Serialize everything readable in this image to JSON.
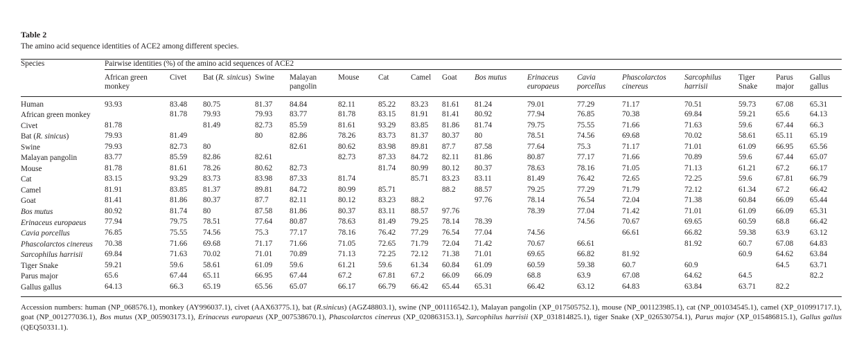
{
  "title": "Table 2",
  "caption": "The amino acid sequence identities of ACE2 among different species.",
  "chart_data": {
    "type": "table",
    "species_column_header": "Species",
    "group_header": "Pairwise identities (%) of the amino acid sequences of ACE2",
    "columns": [
      {
        "label": "African green monkey",
        "italic": false
      },
      {
        "label": "Civet",
        "italic": false
      },
      {
        "label": "Bat (R. sinicus)",
        "italic": false,
        "italic_part": "R. sinicus"
      },
      {
        "label": "Swine",
        "italic": false
      },
      {
        "label": "Malayan pangolin",
        "italic": false
      },
      {
        "label": "Mouse",
        "italic": false
      },
      {
        "label": "Cat",
        "italic": false
      },
      {
        "label": "Camel",
        "italic": false
      },
      {
        "label": "Goat",
        "italic": false
      },
      {
        "label": "Bos mutus",
        "italic": true
      },
      {
        "label": "Erinaceus europaeus",
        "italic": true
      },
      {
        "label": "Cavia porcellus",
        "italic": true
      },
      {
        "label": "Phascolarctos cinereus",
        "italic": true
      },
      {
        "label": "Sarcophilus harrisii",
        "italic": true
      },
      {
        "label": "Tiger Snake",
        "italic": false
      },
      {
        "label": "Parus major",
        "italic": false
      },
      {
        "label": "Gallus gallus",
        "italic": false
      }
    ],
    "rows": [
      {
        "label": "Human",
        "italic": false,
        "values": [
          "93.93",
          "83.48",
          "80.75",
          "81.37",
          "84.84",
          "82.11",
          "85.22",
          "83.23",
          "81.61",
          "81.24",
          "79.01",
          "77.29",
          "71.17",
          "70.51",
          "59.73",
          "67.08",
          "65.31"
        ]
      },
      {
        "label": "African green monkey",
        "italic": false,
        "values": [
          "",
          "81.78",
          "79.93",
          "79.93",
          "83.77",
          "81.78",
          "83.15",
          "81.91",
          "81.41",
          "80.92",
          "77.94",
          "76.85",
          "70.38",
          "69.84",
          "59.21",
          "65.6",
          "64.13"
        ]
      },
      {
        "label": "Civet",
        "italic": false,
        "values": [
          "81.78",
          "",
          "81.49",
          "82.73",
          "85.59",
          "81.61",
          "93.29",
          "83.85",
          "81.86",
          "81.74",
          "79.75",
          "75.55",
          "71.66",
          "71.63",
          "59.6",
          "67.44",
          "66.3"
        ]
      },
      {
        "label": "Bat (R. sinicus)",
        "italic": false,
        "italic_part": "R. sinicus",
        "values": [
          "79.93",
          "81.49",
          "",
          "80",
          "82.86",
          "78.26",
          "83.73",
          "81.37",
          "80.37",
          "80",
          "78.51",
          "74.56",
          "69.68",
          "70.02",
          "58.61",
          "65.11",
          "65.19"
        ]
      },
      {
        "label": "Swine",
        "italic": false,
        "values": [
          "79.93",
          "82.73",
          "80",
          "",
          "82.61",
          "80.62",
          "83.98",
          "89.81",
          "87.7",
          "87.58",
          "77.64",
          "75.3",
          "71.17",
          "71.01",
          "61.09",
          "66.95",
          "65.56"
        ]
      },
      {
        "label": "Malayan pangolin",
        "italic": false,
        "values": [
          "83.77",
          "85.59",
          "82.86",
          "82.61",
          "",
          "82.73",
          "87.33",
          "84.72",
          "82.11",
          "81.86",
          "80.87",
          "77.17",
          "71.66",
          "70.89",
          "59.6",
          "67.44",
          "65.07"
        ]
      },
      {
        "label": "Mouse",
        "italic": false,
        "values": [
          "81.78",
          "81.61",
          "78.26",
          "80.62",
          "82.73",
          "",
          "81.74",
          "80.99",
          "80.12",
          "80.37",
          "78.63",
          "78.16",
          "71.05",
          "71.13",
          "61.21",
          "67.2",
          "66.17"
        ]
      },
      {
        "label": "Cat",
        "italic": false,
        "values": [
          "83.15",
          "93.29",
          "83.73",
          "83.98",
          "87.33",
          "81.74",
          "",
          "85.71",
          "83.23",
          "83.11",
          "81.49",
          "76.42",
          "72.65",
          "72.25",
          "59.6",
          "67.81",
          "66.79"
        ]
      },
      {
        "label": "Camel",
        "italic": false,
        "values": [
          "81.91",
          "83.85",
          "81.37",
          "89.81",
          "84.72",
          "80.99",
          "85.71",
          "",
          "88.2",
          "88.57",
          "79.25",
          "77.29",
          "71.79",
          "72.12",
          "61.34",
          "67.2",
          "66.42"
        ]
      },
      {
        "label": "Goat",
        "italic": false,
        "values": [
          "81.41",
          "81.86",
          "80.37",
          "87.7",
          "82.11",
          "80.12",
          "83.23",
          "88.2",
          "",
          "97.76",
          "78.14",
          "76.54",
          "72.04",
          "71.38",
          "60.84",
          "66.09",
          "65.44"
        ]
      },
      {
        "label": "Bos mutus",
        "italic": true,
        "values": [
          "80.92",
          "81.74",
          "80",
          "87.58",
          "81.86",
          "80.37",
          "83.11",
          "88.57",
          "97.76",
          "",
          "78.39",
          "77.04",
          "71.42",
          "71.01",
          "61.09",
          "66.09",
          "65.31"
        ]
      },
      {
        "label": "Erinaceus europaeus",
        "italic": true,
        "values": [
          "77.94",
          "79.75",
          "78.51",
          "77.64",
          "80.87",
          "78.63",
          "81.49",
          "79.25",
          "78.14",
          "78.39",
          "",
          "74.56",
          "70.67",
          "69.65",
          "60.59",
          "68.8",
          "66.42"
        ]
      },
      {
        "label": "Cavia porcellus",
        "italic": true,
        "values": [
          "76.85",
          "75.55",
          "74.56",
          "75.3",
          "77.17",
          "78.16",
          "76.42",
          "77.29",
          "76.54",
          "77.04",
          "74.56",
          "",
          "66.61",
          "66.82",
          "59.38",
          "63.9",
          "63.12"
        ]
      },
      {
        "label": "Phascolarctos cinereus",
        "italic": true,
        "values": [
          "70.38",
          "71.66",
          "69.68",
          "71.17",
          "71.66",
          "71.05",
          "72.65",
          "71.79",
          "72.04",
          "71.42",
          "70.67",
          "66.61",
          "",
          "81.92",
          "60.7",
          "67.08",
          "64.83"
        ]
      },
      {
        "label": "Sarcophilus harrisii",
        "italic": true,
        "values": [
          "69.84",
          "71.63",
          "70.02",
          "71.01",
          "70.89",
          "71.13",
          "72.25",
          "72.12",
          "71.38",
          "71.01",
          "69.65",
          "66.82",
          "81.92",
          "",
          "60.9",
          "64.62",
          "63.84"
        ]
      },
      {
        "label": "Tiger Snake",
        "italic": false,
        "values": [
          "59.21",
          "59.6",
          "58.61",
          "61.09",
          "59.6",
          "61.21",
          "59.6",
          "61.34",
          "60.84",
          "61.09",
          "60.59",
          "59.38",
          "60.7",
          "60.9",
          "",
          "64.5",
          "63.71"
        ]
      },
      {
        "label": "Parus major",
        "italic": false,
        "values": [
          "65.6",
          "67.44",
          "65.11",
          "66.95",
          "67.44",
          "67.2",
          "67.81",
          "67.2",
          "66.09",
          "66.09",
          "68.8",
          "63.9",
          "67.08",
          "64.62",
          "64.5",
          "",
          "82.2"
        ]
      },
      {
        "label": "Gallus gallus",
        "italic": false,
        "values": [
          "64.13",
          "66.3",
          "65.19",
          "65.56",
          "65.07",
          "66.17",
          "66.79",
          "66.42",
          "65.44",
          "65.31",
          "66.42",
          "63.12",
          "64.83",
          "63.84",
          "63.71",
          "82.2",
          ""
        ]
      }
    ]
  },
  "footnote": {
    "segments": [
      {
        "t": "Accession numbers: human (NP_068576.1), monkey (AY996037.1), civet (AAX63775.1), bat (",
        "i": false
      },
      {
        "t": "R.sinicus",
        "i": true
      },
      {
        "t": ") (AGZ48803.1), swine (NP_001116542.1), Malayan pangolin (XP_017505752.1), mouse (NP_001123985.1), cat (NP_001034545.1), camel (XP_010991717.1), goat (NP_001277036.1), ",
        "i": false
      },
      {
        "t": "Bos mutus",
        "i": true
      },
      {
        "t": " (XP_005903173.1), ",
        "i": false
      },
      {
        "t": "Erinaceus europaeus",
        "i": true
      },
      {
        "t": " (XP_007538670.1), ",
        "i": false
      },
      {
        "t": "Phascolarctos cinereus",
        "i": true
      },
      {
        "t": " (XP_020863153.1), ",
        "i": false
      },
      {
        "t": "Sarcophilus harrisii",
        "i": true
      },
      {
        "t": " (XP_031814825.1), tiger Snake (XP_026530754.1), ",
        "i": false
      },
      {
        "t": "Parus major",
        "i": true
      },
      {
        "t": " (XP_015486815.1), ",
        "i": false
      },
      {
        "t": "Gallus gallus",
        "i": true
      },
      {
        "t": " (QEQ50331.1).",
        "i": false
      }
    ]
  }
}
